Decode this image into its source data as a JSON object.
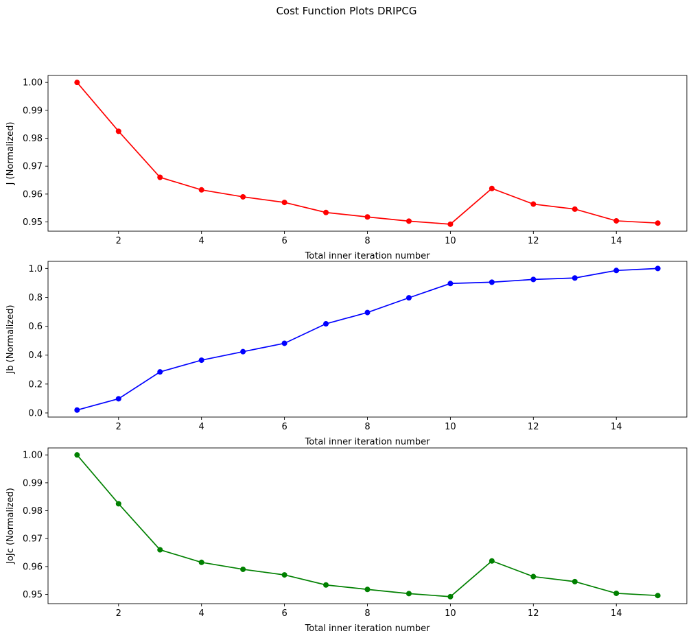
{
  "suptitle": "Cost Function Plots DRIPCG",
  "chart_data": [
    {
      "type": "line",
      "xlabel": "Total inner iteration number",
      "ylabel": "J (Normalized)",
      "color": "#ff0000",
      "grid": false,
      "xlim": [
        0.3,
        15.7
      ],
      "ylim": [
        0.9467,
        1.0025
      ],
      "xticks": [
        2,
        4,
        6,
        8,
        10,
        12,
        14
      ],
      "yticks": [
        0.95,
        0.96,
        0.97,
        0.98,
        0.99,
        1.0
      ],
      "ytick_labels": [
        "0.95",
        "0.96",
        "0.97",
        "0.98",
        "0.99",
        "1.00"
      ],
      "x": [
        1,
        2,
        3,
        4,
        5,
        6,
        7,
        8,
        9,
        10,
        11,
        12,
        13,
        14,
        15
      ],
      "y": [
        1.0,
        0.9825,
        0.966,
        0.9615,
        0.959,
        0.957,
        0.9534,
        0.9518,
        0.9503,
        0.9492,
        0.962,
        0.9564,
        0.9546,
        0.9504,
        0.9496
      ]
    },
    {
      "type": "line",
      "xlabel": "Total inner iteration number",
      "ylabel": "Jb (Normalized)",
      "color": "#0000ff",
      "grid": false,
      "xlim": [
        0.3,
        15.7
      ],
      "ylim": [
        -0.0286,
        1.0492
      ],
      "xticks": [
        2,
        4,
        6,
        8,
        10,
        12,
        14
      ],
      "yticks": [
        0.0,
        0.2,
        0.4,
        0.6,
        0.8,
        1.0
      ],
      "ytick_labels": [
        "0.0",
        "0.2",
        "0.4",
        "0.6",
        "0.8",
        "1.0"
      ],
      "x": [
        1,
        2,
        3,
        4,
        5,
        6,
        7,
        8,
        9,
        10,
        11,
        12,
        13,
        14,
        15
      ],
      "y": [
        0.02,
        0.098,
        0.284,
        0.365,
        0.424,
        0.482,
        0.617,
        0.695,
        0.797,
        0.896,
        0.905,
        0.924,
        0.934,
        0.986,
        1.0
      ]
    },
    {
      "type": "line",
      "xlabel": "Total inner iteration number",
      "ylabel": "JoJc (Normalized)",
      "color": "#008000",
      "grid": false,
      "xlim": [
        0.3,
        15.7
      ],
      "ylim": [
        0.9467,
        1.0025
      ],
      "xticks": [
        2,
        4,
        6,
        8,
        10,
        12,
        14
      ],
      "yticks": [
        0.95,
        0.96,
        0.97,
        0.98,
        0.99,
        1.0
      ],
      "ytick_labels": [
        "0.95",
        "0.96",
        "0.97",
        "0.98",
        "0.99",
        "1.00"
      ],
      "x": [
        1,
        2,
        3,
        4,
        5,
        6,
        7,
        8,
        9,
        10,
        11,
        12,
        13,
        14,
        15
      ],
      "y": [
        1.0,
        0.9825,
        0.966,
        0.9615,
        0.959,
        0.957,
        0.9534,
        0.9518,
        0.9503,
        0.9492,
        0.962,
        0.9564,
        0.9546,
        0.9504,
        0.9496
      ]
    }
  ]
}
